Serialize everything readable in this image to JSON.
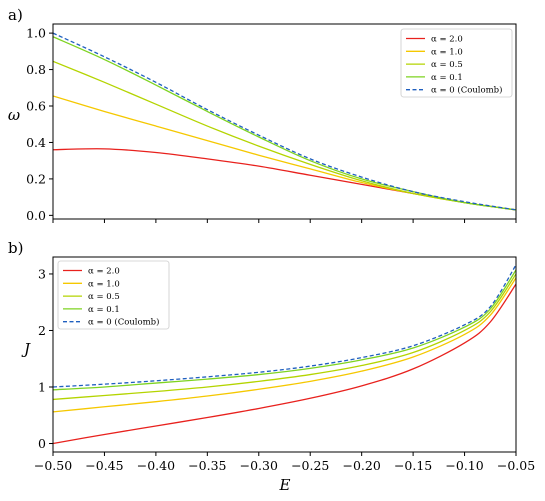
{
  "chart_data": [
    {
      "type": "line",
      "panel_label": "a)",
      "ylabel": "ω",
      "xlabel": "",
      "xlim": [
        -0.5,
        -0.05
      ],
      "ylim": [
        -0.02,
        1.05
      ],
      "xticks": [
        -0.5,
        -0.45,
        -0.4,
        -0.35,
        -0.3,
        -0.25,
        -0.2,
        -0.15,
        -0.1,
        -0.05
      ],
      "show_xticklabels": false,
      "yticks": [
        0.0,
        0.2,
        0.4,
        0.6,
        0.8,
        1.0
      ],
      "ytick_labels": [
        "0.0",
        "0.2",
        "0.4",
        "0.6",
        "0.8",
        "1.0"
      ],
      "grid": false,
      "legend_position": "top-right",
      "x": [
        -0.5,
        -0.45,
        -0.4,
        -0.35,
        -0.3,
        -0.25,
        -0.2,
        -0.15,
        -0.1,
        -0.05
      ],
      "series": [
        {
          "name": "α = 2.0",
          "color": "#e8211d",
          "dash": false,
          "values": [
            0.36,
            0.365,
            0.345,
            0.31,
            0.27,
            0.22,
            0.17,
            0.12,
            0.07,
            0.03
          ]
        },
        {
          "name": "α = 1.0",
          "color": "#f5c800",
          "dash": false,
          "values": [
            0.655,
            0.57,
            0.49,
            0.41,
            0.33,
            0.255,
            0.18,
            0.12,
            0.07,
            0.03
          ]
        },
        {
          "name": "α = 0.5",
          "color": "#b4d400",
          "dash": false,
          "values": [
            0.845,
            0.73,
            0.61,
            0.49,
            0.38,
            0.28,
            0.19,
            0.12,
            0.07,
            0.03
          ]
        },
        {
          "name": "α = 0.1",
          "color": "#7ed321",
          "dash": false,
          "values": [
            0.98,
            0.855,
            0.715,
            0.57,
            0.43,
            0.3,
            0.2,
            0.13,
            0.07,
            0.03
          ]
        },
        {
          "name": "α = 0 (Coulomb)",
          "color": "#1f5fbf",
          "dash": true,
          "values": [
            1.0,
            0.87,
            0.73,
            0.58,
            0.44,
            0.31,
            0.21,
            0.13,
            0.075,
            0.03
          ]
        }
      ]
    },
    {
      "type": "line",
      "panel_label": "b)",
      "ylabel": "J",
      "xlabel": "E",
      "xlim": [
        -0.5,
        -0.05
      ],
      "ylim": [
        -0.15,
        3.3
      ],
      "xticks": [
        -0.5,
        -0.45,
        -0.4,
        -0.35,
        -0.3,
        -0.25,
        -0.2,
        -0.15,
        -0.1,
        -0.05
      ],
      "xtick_labels": [
        "−0.50",
        "−0.45",
        "−0.40",
        "−0.35",
        "−0.30",
        "−0.25",
        "−0.20",
        "−0.15",
        "−0.10",
        "−0.05"
      ],
      "show_xticklabels": true,
      "yticks": [
        0,
        1,
        2,
        3
      ],
      "ytick_labels": [
        "0",
        "1",
        "2",
        "3"
      ],
      "grid": false,
      "legend_position": "top-left",
      "x": [
        -0.5,
        -0.45,
        -0.4,
        -0.35,
        -0.3,
        -0.25,
        -0.2,
        -0.15,
        -0.1,
        -0.075,
        -0.05
      ],
      "series": [
        {
          "name": "α = 2.0",
          "color": "#e8211d",
          "dash": false,
          "values": [
            0.0,
            0.16,
            0.31,
            0.46,
            0.62,
            0.8,
            1.02,
            1.32,
            1.78,
            2.15,
            2.82
          ]
        },
        {
          "name": "α = 1.0",
          "color": "#f5c800",
          "dash": false,
          "values": [
            0.56,
            0.65,
            0.74,
            0.84,
            0.96,
            1.1,
            1.28,
            1.53,
            1.93,
            2.27,
            2.93
          ]
        },
        {
          "name": "α = 0.5",
          "color": "#b4d400",
          "dash": false,
          "values": [
            0.78,
            0.85,
            0.92,
            1.0,
            1.1,
            1.22,
            1.38,
            1.61,
            2.0,
            2.33,
            3.0
          ]
        },
        {
          "name": "α = 0.1",
          "color": "#7ed321",
          "dash": false,
          "values": [
            0.95,
            1.0,
            1.07,
            1.14,
            1.22,
            1.33,
            1.48,
            1.69,
            2.06,
            2.38,
            3.07
          ]
        },
        {
          "name": "α = 0 (Coulomb)",
          "color": "#1f5fbf",
          "dash": true,
          "values": [
            1.0,
            1.05,
            1.11,
            1.18,
            1.26,
            1.37,
            1.52,
            1.73,
            2.1,
            2.42,
            3.16
          ]
        }
      ]
    }
  ]
}
